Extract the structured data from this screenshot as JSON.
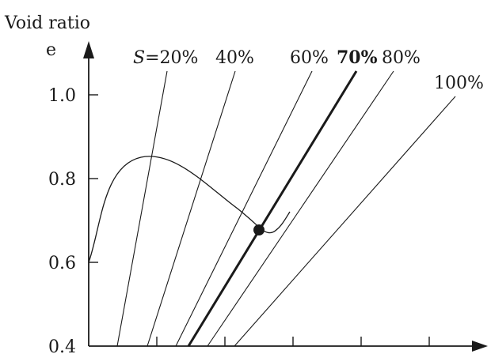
{
  "chart_data": {
    "type": "line",
    "title": "",
    "ylabel": "Void ratio",
    "ysymbol": "e",
    "xlabel": "",
    "ylim": [
      0.4,
      1.1
    ],
    "yticks": [
      "0.4",
      "0.6",
      "0.8",
      "1.0"
    ],
    "ytick_values": [
      0.4,
      0.6,
      0.8,
      1.0
    ],
    "xtick_count": 5,
    "grid": false,
    "highlight": "70%",
    "series": [
      {
        "name": "S=20%",
        "prefix": "S",
        "rest": "=20%",
        "bold": false
      },
      {
        "name": "40%",
        "bold": false
      },
      {
        "name": "60%",
        "bold": false
      },
      {
        "name": "70%",
        "bold": true
      },
      {
        "name": "80%",
        "bold": false
      },
      {
        "name": "100%",
        "bold": false
      }
    ],
    "compaction_curve": {
      "description_points_e": [
        0.6,
        0.86,
        0.69
      ],
      "peak_e": 0.86,
      "marked_point_e": 0.69
    }
  }
}
